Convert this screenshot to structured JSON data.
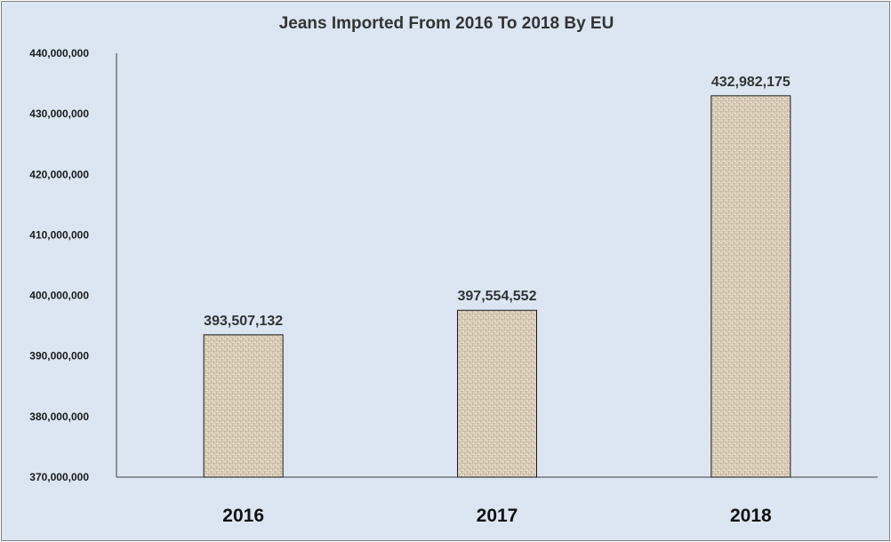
{
  "chart_data": {
    "type": "bar",
    "title": "Jeans Imported From 2016 To 2018 By EU",
    "xlabel": "",
    "ylabel": "",
    "categories": [
      "2016",
      "2017",
      "2018"
    ],
    "values": [
      393507132,
      397554552,
      432982175
    ],
    "data_labels": [
      "393,507,132",
      "397,554,552",
      "432,982,175"
    ],
    "ylim": [
      370000000,
      440000000
    ],
    "y_ticks": [
      370000000,
      380000000,
      390000000,
      400000000,
      410000000,
      420000000,
      430000000,
      440000000
    ],
    "y_tick_labels": [
      "370,000,000",
      "380,000,000",
      "390,000,000",
      "400,000,000",
      "410,000,000",
      "420,000,000",
      "430,000,000",
      "440,000,000"
    ],
    "grid": false,
    "legend": "none",
    "colors": {
      "background": "#dce6f2",
      "bar_fill": "#ddd1bd",
      "bar_texture": "#b7a68b",
      "bar_outline": "#1a1a1a",
      "axis": "#404040"
    }
  }
}
